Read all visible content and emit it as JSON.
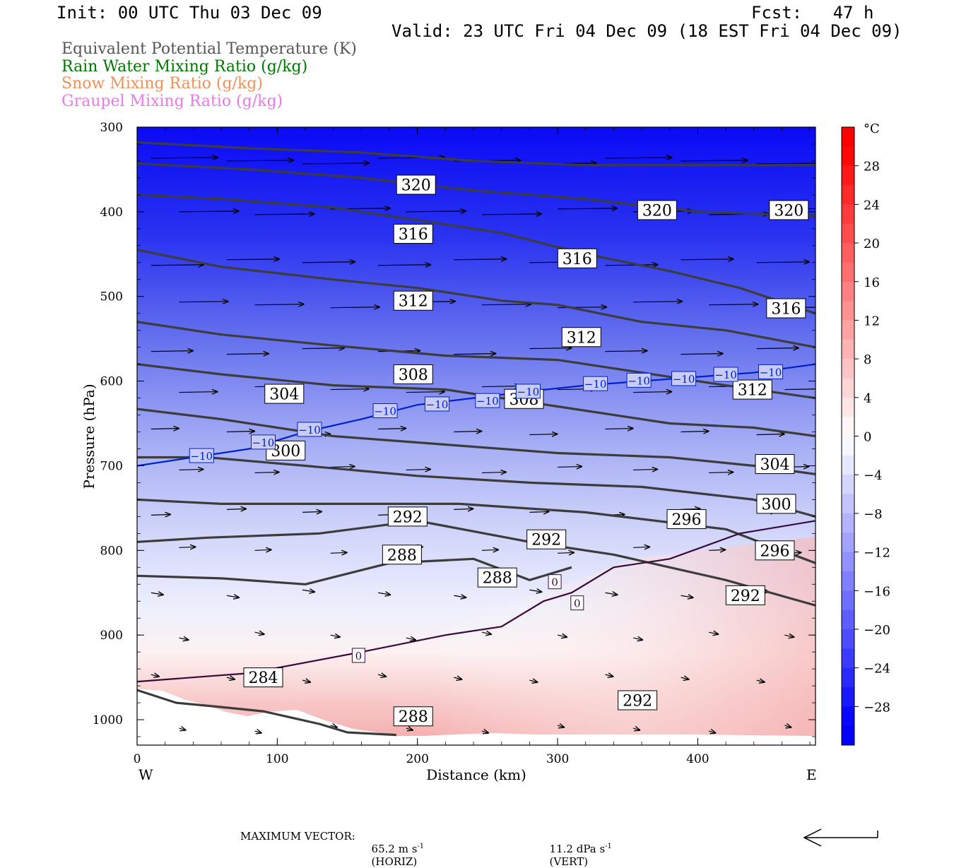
{
  "header": {
    "init": "Init: 00 UTC Thu 03 Dec 09",
    "fcst": "Fcst:   47 h",
    "valid": "Valid: 23 UTC Fri 04 Dec 09 (18 EST Fri 04 Dec 09)"
  },
  "legend": [
    {
      "label": "Equivalent Potential Temperature (K)",
      "color": "#555555"
    },
    {
      "label": "Rain Water Mixing Ratio (g/kg)",
      "color": "#007700"
    },
    {
      "label": "Snow Mixing Ratio (g/kg)",
      "color": "#f0905a"
    },
    {
      "label": "Graupel Mixing Ratio (g/kg)",
      "color": "#ee77ee"
    }
  ],
  "footer": {
    "max_vector_label": "MAXIMUM VECTOR:",
    "horiz_value": "65.2 m s",
    "horiz_unit": "(HORIZ)",
    "vert_value": "11.2 dPa s",
    "vert_unit": "(VERT)",
    "exp": "-1"
  },
  "chart_data": {
    "type": "cross-section",
    "xlabel": "Distance (km)",
    "ylabel": "Pressure (hPa)",
    "x_ticks": [
      0,
      100,
      200,
      300,
      400
    ],
    "x_range": [
      0,
      484
    ],
    "y_ticks": [
      300,
      400,
      500,
      600,
      700,
      800,
      900,
      1000
    ],
    "y_range": [
      300,
      1030
    ],
    "left_end_label": "W",
    "right_end_label": "E",
    "colorbar": {
      "unit": "°C",
      "range": [
        -32,
        32
      ],
      "tick_values": [
        28,
        24,
        20,
        16,
        12,
        8,
        4,
        0,
        -4,
        -8,
        -12,
        -16,
        -20,
        -24,
        -28
      ],
      "tick_labels": [
        "28",
        "24",
        "20",
        "16",
        "12",
        "8",
        "4",
        "0",
        "−4",
        "−8",
        "−12",
        "−16",
        "−20",
        "−24",
        "−28"
      ],
      "low_color": "#0000ff",
      "high_color": "#ff0000"
    },
    "theta_e_contours": [
      {
        "value": 284,
        "points": [
          [
            0,
            965
          ],
          [
            28,
            980
          ],
          [
            60,
            985
          ],
          [
            90,
            990
          ],
          [
            130,
            1005
          ],
          [
            150,
            1015
          ],
          [
            185,
            1018
          ]
        ]
      },
      {
        "value": 288,
        "points": [
          [
            0,
            830
          ],
          [
            60,
            833
          ],
          [
            120,
            840
          ],
          [
            180,
            815
          ],
          [
            240,
            810
          ],
          [
            280,
            835
          ],
          [
            310,
            820
          ]
        ]
      },
      {
        "value": 292,
        "points": [
          [
            0,
            790
          ],
          [
            50,
            785
          ],
          [
            130,
            780
          ],
          [
            200,
            765
          ],
          [
            280,
            790
          ],
          [
            340,
            805
          ],
          [
            420,
            835
          ],
          [
            484,
            865
          ]
        ]
      },
      {
        "value": 296,
        "points": [
          [
            0,
            740
          ],
          [
            60,
            745
          ],
          [
            140,
            745
          ],
          [
            230,
            745
          ],
          [
            320,
            755
          ],
          [
            420,
            775
          ],
          [
            484,
            815
          ]
        ]
      },
      {
        "value": 300,
        "points": [
          [
            0,
            690
          ],
          [
            50,
            690
          ],
          [
            120,
            700
          ],
          [
            200,
            712
          ],
          [
            280,
            720
          ],
          [
            360,
            725
          ],
          [
            440,
            740
          ],
          [
            484,
            760
          ]
        ]
      },
      {
        "value": 304,
        "points": [
          [
            0,
            633
          ],
          [
            60,
            645
          ],
          [
            140,
            665
          ],
          [
            220,
            675
          ],
          [
            300,
            685
          ],
          [
            380,
            690
          ],
          [
            440,
            700
          ],
          [
            484,
            710
          ]
        ]
      },
      {
        "value": 308,
        "points": [
          [
            0,
            580
          ],
          [
            60,
            592
          ],
          [
            140,
            605
          ],
          [
            220,
            610
          ],
          [
            300,
            630
          ],
          [
            380,
            650
          ],
          [
            440,
            655
          ],
          [
            484,
            665
          ]
        ]
      },
      {
        "value": 312,
        "points": [
          [
            0,
            530
          ],
          [
            60,
            545
          ],
          [
            140,
            558
          ],
          [
            220,
            570
          ],
          [
            300,
            575
          ],
          [
            360,
            590
          ],
          [
            420,
            605
          ],
          [
            484,
            620
          ]
        ]
      },
      {
        "value": 316,
        "points": [
          [
            0,
            445
          ],
          [
            60,
            465
          ],
          [
            140,
            480
          ],
          [
            200,
            490
          ],
          [
            260,
            505
          ],
          [
            300,
            510
          ],
          [
            360,
            530
          ],
          [
            420,
            540
          ],
          [
            484,
            560
          ]
        ]
      },
      {
        "value": 320,
        "points": [
          [
            0,
            380
          ],
          [
            60,
            385
          ],
          [
            140,
            395
          ],
          [
            200,
            410
          ],
          [
            260,
            425
          ],
          [
            320,
            450
          ],
          [
            380,
            470
          ],
          [
            430,
            490
          ],
          [
            484,
            520
          ]
        ]
      },
      {
        "value": 324,
        "points": [
          [
            0,
            343
          ],
          [
            80,
            350
          ],
          [
            160,
            360
          ],
          [
            240,
            375
          ],
          [
            320,
            385
          ],
          [
            400,
            400
          ],
          [
            484,
            405
          ]
        ]
      },
      {
        "value": 328,
        "points": [
          [
            0,
            318
          ],
          [
            80,
            325
          ],
          [
            160,
            330
          ],
          [
            240,
            340
          ],
          [
            320,
            345
          ],
          [
            400,
            345
          ],
          [
            484,
            345
          ]
        ]
      }
    ],
    "zero_isotherm": [
      [
        0,
        955
      ],
      [
        80,
        945
      ],
      [
        160,
        920
      ],
      [
        220,
        900
      ],
      [
        260,
        890
      ],
      [
        290,
        860
      ],
      [
        310,
        850
      ],
      [
        340,
        820
      ],
      [
        380,
        810
      ],
      [
        430,
        780
      ],
      [
        484,
        765
      ]
    ],
    "minus10_isotherm": [
      [
        0,
        700
      ],
      [
        40,
        690
      ],
      [
        80,
        680
      ],
      [
        120,
        660
      ],
      [
        160,
        645
      ],
      [
        200,
        628
      ],
      [
        240,
        620
      ],
      [
        280,
        612
      ],
      [
        320,
        605
      ],
      [
        360,
        600
      ],
      [
        400,
        595
      ],
      [
        440,
        590
      ],
      [
        484,
        580
      ]
    ],
    "labels": [
      {
        "text": "320",
        "x": 199,
        "p": 368
      },
      {
        "text": "320",
        "x": 371,
        "p": 398
      },
      {
        "text": "320",
        "x": 465,
        "p": 398
      },
      {
        "text": "316",
        "x": 197,
        "p": 426
      },
      {
        "text": "316",
        "x": 314,
        "p": 455
      },
      {
        "text": "316",
        "x": 463,
        "p": 514
      },
      {
        "text": "312",
        "x": 197,
        "p": 505
      },
      {
        "text": "312",
        "x": 317,
        "p": 548
      },
      {
        "text": "312",
        "x": 439,
        "p": 610
      },
      {
        "text": "308",
        "x": 197,
        "p": 592
      },
      {
        "text": "308",
        "x": 276,
        "p": 621
      },
      {
        "text": "304",
        "x": 105,
        "p": 615
      },
      {
        "text": "304",
        "x": 455,
        "p": 698
      },
      {
        "text": "300",
        "x": 106,
        "p": 682
      },
      {
        "text": "300",
        "x": 456,
        "p": 745
      },
      {
        "text": "296",
        "x": 392,
        "p": 763
      },
      {
        "text": "296",
        "x": 455,
        "p": 800
      },
      {
        "text": "292",
        "x": 193,
        "p": 760
      },
      {
        "text": "292",
        "x": 292,
        "p": 787
      },
      {
        "text": "292",
        "x": 434,
        "p": 853
      },
      {
        "text": "292",
        "x": 357,
        "p": 977
      },
      {
        "text": "288",
        "x": 189,
        "p": 805
      },
      {
        "text": "288",
        "x": 257,
        "p": 832
      },
      {
        "text": "288",
        "x": 197,
        "p": 996
      },
      {
        "text": "284",
        "x": 90,
        "p": 950
      }
    ],
    "isotherm_labels": [
      {
        "text": "−10",
        "x": 46,
        "p": 688
      },
      {
        "text": "−10",
        "x": 90,
        "p": 672
      },
      {
        "text": "−10",
        "x": 123,
        "p": 657
      },
      {
        "text": "−10",
        "x": 177,
        "p": 635
      },
      {
        "text": "−10",
        "x": 214,
        "p": 627
      },
      {
        "text": "−10",
        "x": 250,
        "p": 623
      },
      {
        "text": "−10",
        "x": 279,
        "p": 612
      },
      {
        "text": "−10",
        "x": 327,
        "p": 603
      },
      {
        "text": "−10",
        "x": 358,
        "p": 599
      },
      {
        "text": "−10",
        "x": 390,
        "p": 597
      },
      {
        "text": "−10",
        "x": 420,
        "p": 592
      },
      {
        "text": "−10",
        "x": 452,
        "p": 589
      },
      {
        "text": "0",
        "x": 158,
        "p": 924
      },
      {
        "text": "0",
        "x": 298,
        "p": 837
      },
      {
        "text": "0",
        "x": 314,
        "p": 862
      }
    ]
  }
}
